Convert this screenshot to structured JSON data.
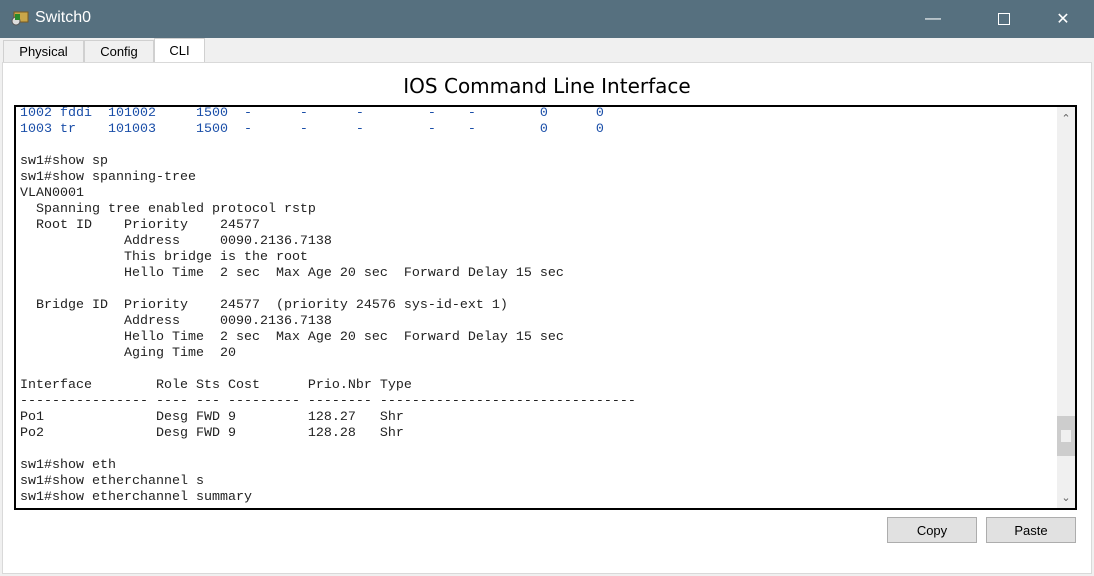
{
  "window": {
    "title": "Switch0",
    "icon": "packet-tracer-device-icon"
  },
  "tabs": [
    {
      "label": "Physical"
    },
    {
      "label": "Config"
    },
    {
      "label": "CLI",
      "active": true
    }
  ],
  "cli": {
    "heading": "IOS Command Line Interface",
    "lines": [
      {
        "text": "1002 fddi  101002     1500  -      -      -        -    -        0      0",
        "color": "blue"
      },
      {
        "text": "1003 tr    101003     1500  -      -      -        -    -        0      0",
        "color": "blue"
      },
      {
        "text": ""
      },
      {
        "text": "sw1#show sp"
      },
      {
        "text": "sw1#show spanning-tree"
      },
      {
        "text": "VLAN0001"
      },
      {
        "text": "  Spanning tree enabled protocol rstp"
      },
      {
        "text": "  Root ID    Priority    24577"
      },
      {
        "text": "             Address     0090.2136.7138"
      },
      {
        "text": "             This bridge is the root"
      },
      {
        "text": "             Hello Time  2 sec  Max Age 20 sec  Forward Delay 15 sec"
      },
      {
        "text": ""
      },
      {
        "text": "  Bridge ID  Priority    24577  (priority 24576 sys-id-ext 1)"
      },
      {
        "text": "             Address     0090.2136.7138"
      },
      {
        "text": "             Hello Time  2 sec  Max Age 20 sec  Forward Delay 15 sec"
      },
      {
        "text": "             Aging Time  20"
      },
      {
        "text": ""
      },
      {
        "text": "Interface        Role Sts Cost      Prio.Nbr Type"
      },
      {
        "text": "---------------- ---- --- --------- -------- --------------------------------"
      },
      {
        "text": "Po1              Desg FWD 9         128.27   Shr"
      },
      {
        "text": "Po2              Desg FWD 9         128.28   Shr"
      },
      {
        "text": ""
      },
      {
        "text": "sw1#show eth"
      },
      {
        "text": "sw1#show etherchannel s"
      },
      {
        "text": "sw1#show etherchannel summary"
      }
    ],
    "scroll_position_percent": 85
  },
  "buttons": {
    "copy": "Copy",
    "paste": "Paste"
  },
  "colors": {
    "titlebar": "#56707f",
    "cli_blue": "#1a4ea8"
  }
}
